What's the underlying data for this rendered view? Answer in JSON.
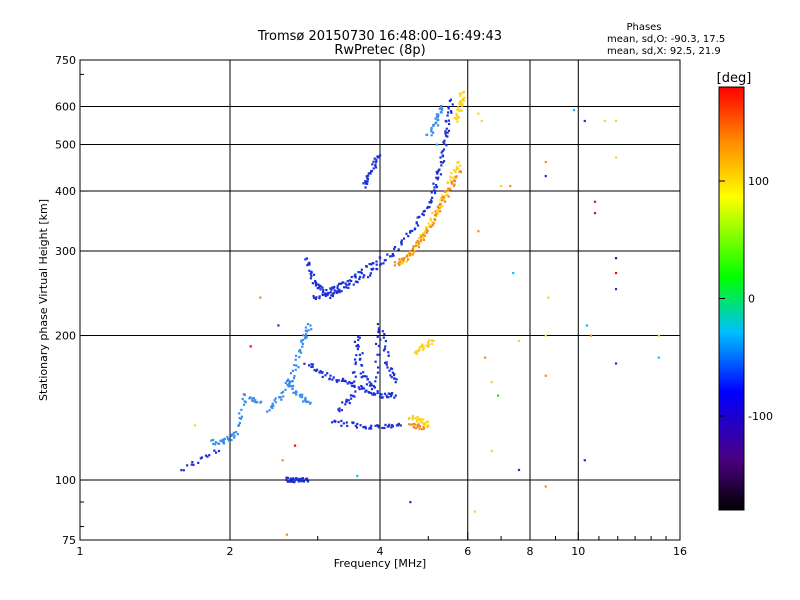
{
  "chart_data": {
    "type": "scatter",
    "title": "Tromsø 20150730 16:48:00–16:49:43",
    "subtitle": "RwPretec (8p)",
    "xlabel": "Frequency [MHz]",
    "ylabel": "Stationary phase Virtual Height [km]",
    "xscale": "log2",
    "yscale": "log",
    "xlim": [
      1,
      16
    ],
    "ylim": [
      75,
      750
    ],
    "x_ticks": [
      1,
      2,
      4,
      6,
      8,
      10,
      16
    ],
    "x_tick_labels": [
      "1",
      "2",
      "4",
      "6",
      "8",
      "10",
      "16"
    ],
    "x_gridlines": [
      2,
      4,
      6,
      8,
      10
    ],
    "y_ticks": [
      75,
      100,
      200,
      300,
      400,
      500,
      600,
      750
    ],
    "y_tick_labels": [
      "75",
      "100",
      "200",
      "300",
      "400",
      "500",
      "600",
      "750"
    ],
    "y_gridlines": [
      100,
      200,
      300,
      400,
      500,
      600
    ],
    "grid": true,
    "phases_box": {
      "title": "Phases",
      "line_o": "mean, sd,O: -90.3, 17.5",
      "line_x": "mean, sd,X:  92.5, 21.9"
    },
    "colorbar": {
      "label": "[deg]",
      "min": -180,
      "max": 180,
      "tick_values": [
        100,
        0,
        -100
      ],
      "tick_labels": [
        "100",
        "0",
        "-100"
      ],
      "colors": [
        "#000000",
        "#4b0082",
        "#0000ff",
        "#00bfff",
        "#00ff00",
        "#ffff00",
        "#ff8c00",
        "#ff0000"
      ]
    },
    "series": [
      {
        "phase_deg": -90,
        "color": "#1a2fd8",
        "segments": [
          [
            [
              2.95,
              240
            ],
            [
              3.2,
              243
            ],
            [
              3.5,
              255
            ],
            [
              3.9,
              275
            ],
            [
              4.3,
              300
            ],
            [
              4.7,
              335
            ],
            [
              5.0,
              375
            ],
            [
              5.2,
              420
            ],
            [
              5.35,
              470
            ],
            [
              5.45,
              540
            ],
            [
              5.55,
              620
            ]
          ],
          [
            [
              2.85,
              290
            ],
            [
              2.95,
              258
            ],
            [
              3.1,
              246
            ],
            [
              3.3,
              252
            ],
            [
              3.6,
              268
            ],
            [
              4.0,
              290
            ]
          ],
          [
            [
              3.7,
              410
            ],
            [
              3.85,
              440
            ],
            [
              4.0,
              475
            ]
          ],
          [
            [
              2.85,
              175
            ],
            [
              3.1,
              165
            ],
            [
              3.4,
              160
            ],
            [
              3.7,
              155
            ],
            [
              4.0,
              150
            ],
            [
              4.3,
              150
            ]
          ],
          [
            [
              3.2,
              132
            ],
            [
              3.6,
              130
            ],
            [
              4.0,
              129
            ],
            [
              4.4,
              130
            ]
          ],
          [
            [
              3.3,
              140
            ],
            [
              3.55,
              150
            ],
            [
              3.6,
              200
            ],
            [
              3.7,
              165
            ],
            [
              3.9,
              155
            ],
            [
              4.0,
              210
            ],
            [
              4.15,
              175
            ],
            [
              4.3,
              160
            ]
          ],
          [
            [
              2.6,
              100
            ],
            [
              2.7,
              100
            ],
            [
              2.85,
              100
            ]
          ],
          [
            [
              1.6,
              105
            ],
            [
              1.9,
              115
            ]
          ]
        ]
      },
      {
        "phase_deg": -60,
        "color": "#3a8ef0",
        "segments": [
          [
            [
              1.85,
              120
            ],
            [
              1.95,
              120
            ],
            [
              2.05,
              125
            ],
            [
              2.15,
              150
            ],
            [
              2.3,
              145
            ]
          ],
          [
            [
              2.4,
              140
            ],
            [
              2.55,
              150
            ],
            [
              2.7,
              170
            ],
            [
              2.8,
              195
            ],
            [
              2.9,
              210
            ]
          ],
          [
            [
              2.6,
              160
            ],
            [
              2.75,
              150
            ],
            [
              2.9,
              145
            ]
          ],
          [
            [
              5.0,
              520
            ],
            [
              5.2,
              560
            ],
            [
              5.3,
              600
            ]
          ]
        ]
      },
      {
        "phase_deg": 90,
        "color": "#ffd21a",
        "segments": [
          [
            [
              4.4,
              280
            ],
            [
              4.7,
              305
            ],
            [
              5.0,
              335
            ],
            [
              5.3,
              380
            ],
            [
              5.55,
              420
            ],
            [
              5.75,
              460
            ]
          ],
          [
            [
              4.6,
              135
            ],
            [
              4.8,
              133
            ],
            [
              5.0,
              130
            ]
          ],
          [
            [
              4.7,
              185
            ],
            [
              4.9,
              190
            ],
            [
              5.1,
              195
            ]
          ],
          [
            [
              5.7,
              560
            ],
            [
              5.8,
              600
            ],
            [
              5.85,
              640
            ]
          ]
        ]
      },
      {
        "phase_deg": 120,
        "color": "#f08a1a",
        "segments": [
          [
            [
              4.3,
              280
            ],
            [
              4.6,
              295
            ],
            [
              4.9,
              320
            ],
            [
              5.2,
              360
            ],
            [
              5.5,
              400
            ],
            [
              5.8,
              440
            ]
          ],
          [
            [
              4.6,
              130
            ],
            [
              4.9,
              128
            ]
          ]
        ]
      }
    ],
    "scattered_points": [
      {
        "x": 6.3,
        "y": 580,
        "color": "#ffd21a"
      },
      {
        "x": 6.4,
        "y": 560,
        "color": "#ffd21a"
      },
      {
        "x": 7.0,
        "y": 410,
        "color": "#ffd21a"
      },
      {
        "x": 7.3,
        "y": 410,
        "color": "#f08a1a"
      },
      {
        "x": 6.3,
        "y": 330,
        "color": "#f08a1a"
      },
      {
        "x": 7.4,
        "y": 270,
        "color": "#00bfff"
      },
      {
        "x": 8.6,
        "y": 460,
        "color": "#f08a1a"
      },
      {
        "x": 8.6,
        "y": 430,
        "color": "#1a2fd8"
      },
      {
        "x": 8.7,
        "y": 240,
        "color": "#ffd21a"
      },
      {
        "x": 8.6,
        "y": 200,
        "color": "#ffd21a"
      },
      {
        "x": 8.6,
        "y": 165,
        "color": "#f08a1a"
      },
      {
        "x": 8.6,
        "y": 97,
        "color": "#f08a1a"
      },
      {
        "x": 9.8,
        "y": 590,
        "color": "#00bfff"
      },
      {
        "x": 10.3,
        "y": 560,
        "color": "#1a2fd8"
      },
      {
        "x": 10.8,
        "y": 380,
        "color": "#b03010"
      },
      {
        "x": 10.8,
        "y": 360,
        "color": "#b03010"
      },
      {
        "x": 11.3,
        "y": 560,
        "color": "#ffd21a"
      },
      {
        "x": 11.9,
        "y": 560,
        "color": "#ffd21a"
      },
      {
        "x": 11.9,
        "y": 470,
        "color": "#ffd21a"
      },
      {
        "x": 11.9,
        "y": 290,
        "color": "#4b0082"
      },
      {
        "x": 11.9,
        "y": 270,
        "color": "#ff0000"
      },
      {
        "x": 11.9,
        "y": 250,
        "color": "#1a2fd8"
      },
      {
        "x": 10.6,
        "y": 200,
        "color": "#f08a1a"
      },
      {
        "x": 10.4,
        "y": 210,
        "color": "#00bfff"
      },
      {
        "x": 11.9,
        "y": 175,
        "color": "#1a2fd8"
      },
      {
        "x": 14.5,
        "y": 180,
        "color": "#00bfff"
      },
      {
        "x": 14.5,
        "y": 200,
        "color": "#ffd21a"
      },
      {
        "x": 10.3,
        "y": 110,
        "color": "#1a2fd8"
      },
      {
        "x": 6.5,
        "y": 180,
        "color": "#f08a1a"
      },
      {
        "x": 6.7,
        "y": 160,
        "color": "#ffd21a"
      },
      {
        "x": 6.9,
        "y": 150,
        "color": "#00ff00"
      },
      {
        "x": 7.6,
        "y": 195,
        "color": "#ffd21a"
      },
      {
        "x": 7.6,
        "y": 105,
        "color": "#1a2fd8"
      },
      {
        "x": 6.7,
        "y": 115,
        "color": "#ffd21a"
      },
      {
        "x": 6.2,
        "y": 86,
        "color": "#ffd21a"
      },
      {
        "x": 4.6,
        "y": 90,
        "color": "#1a2fd8"
      },
      {
        "x": 3.6,
        "y": 102,
        "color": "#00bfff"
      },
      {
        "x": 2.6,
        "y": 77,
        "color": "#f08a1a"
      },
      {
        "x": 2.3,
        "y": 240,
        "color": "#f08a1a"
      },
      {
        "x": 2.2,
        "y": 190,
        "color": "#ff0000"
      },
      {
        "x": 2.5,
        "y": 210,
        "color": "#1a2fd8"
      },
      {
        "x": 2.55,
        "y": 110,
        "color": "#f08a1a"
      },
      {
        "x": 2.7,
        "y": 118,
        "color": "#ff0000"
      },
      {
        "x": 1.7,
        "y": 130,
        "color": "#ffd21a"
      },
      {
        "x": 5.2,
        "y": 500,
        "color": "#00bfff"
      }
    ]
  }
}
